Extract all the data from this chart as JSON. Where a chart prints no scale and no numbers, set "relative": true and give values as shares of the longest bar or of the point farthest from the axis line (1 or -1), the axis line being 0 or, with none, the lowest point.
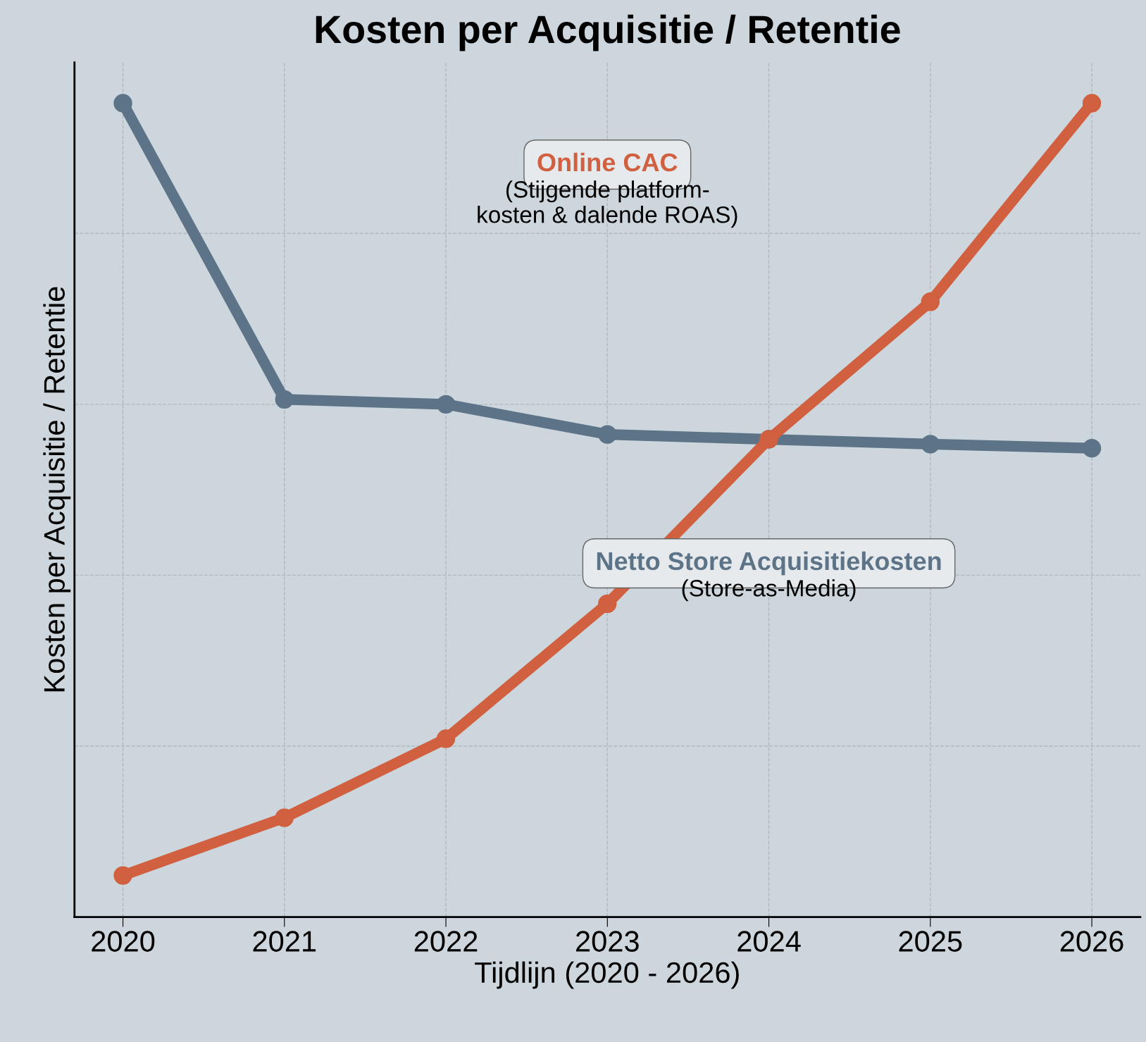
{
  "chart_data": {
    "type": "line",
    "title": "Kosten per Acquisitie / Retentie",
    "xlabel": "Tijdlijn (2020 - 2026)",
    "ylabel": "Kosten per Acquisitie / Retentie",
    "categories": [
      "2020",
      "2021",
      "2022",
      "2023",
      "2024",
      "2025",
      "2026"
    ],
    "relative": true,
    "grid": true,
    "tick_labels": "x",
    "marker": "circle",
    "line_style": "solid",
    "legend": false,
    "series": [
      {
        "name": "Netto Store Acquisitiekosten",
        "color": "#5d7488",
        "values": [
          1.0,
          0.636,
          0.63,
          0.593,
          0.587,
          0.581,
          0.576
        ]
      },
      {
        "name": "Online CAC",
        "color": "#d0603f",
        "values": [
          0.051,
          0.122,
          0.219,
          0.385,
          0.587,
          0.756,
          1.0
        ]
      }
    ],
    "annotations": [
      "(Store-as-Media)",
      "(Stijgende platform-\nkosten & dalende ROAS)"
    ]
  }
}
